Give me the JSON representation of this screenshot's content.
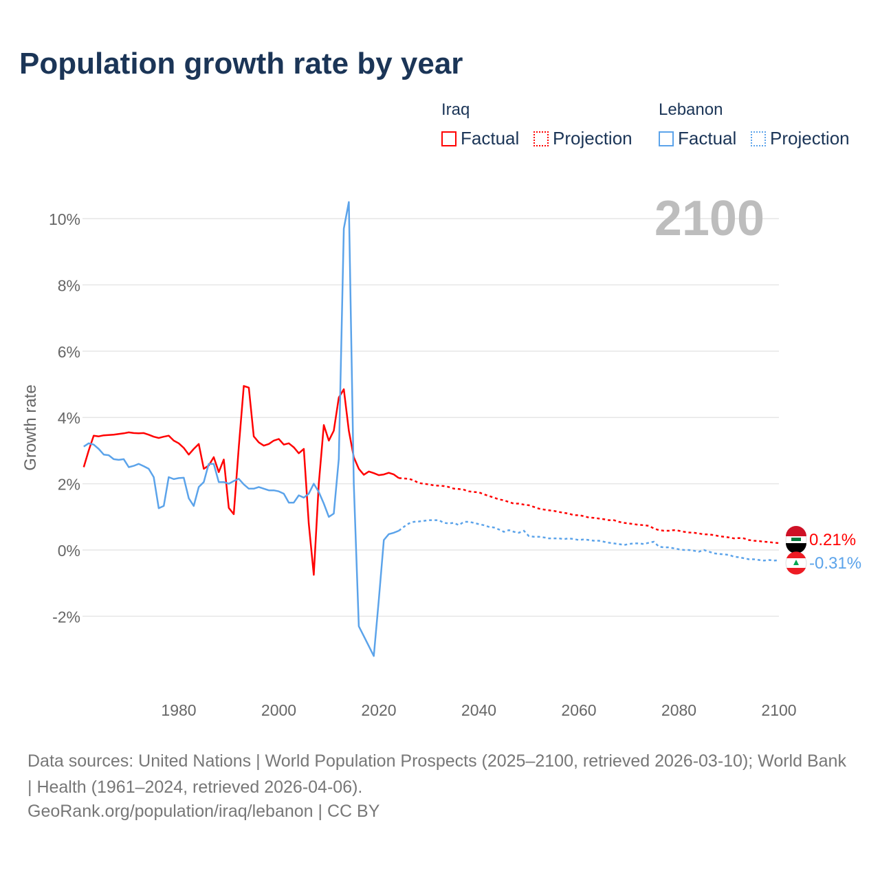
{
  "chart_data": {
    "type": "line",
    "title": "Population growth rate by year",
    "ylabel": "Growth rate",
    "xlabel": "",
    "year_label": "2100",
    "xlim": [
      1961,
      2100
    ],
    "ylim": [
      -4,
      10.5
    ],
    "xticks": [
      1980,
      2000,
      2020,
      2040,
      2060,
      2080,
      2100
    ],
    "yticks": [
      -2,
      0,
      2,
      4,
      6,
      8,
      10
    ],
    "ytick_labels": [
      "-2%",
      "0%",
      "2%",
      "4%",
      "6%",
      "8%",
      "10%"
    ],
    "grid": true,
    "legend": {
      "groups": [
        {
          "name": "Iraq",
          "factual": "Factual",
          "projection": "Projection"
        },
        {
          "name": "Lebanon",
          "factual": "Factual",
          "projection": "Projection"
        }
      ],
      "placement": "top-right"
    },
    "series": [
      {
        "name": "Iraq",
        "color": "#ff0000",
        "end_label": "0.21%",
        "factual_start": 1961,
        "factual": [
          2.5,
          3.0,
          3.45,
          3.43,
          3.46,
          3.47,
          3.48,
          3.5,
          3.52,
          3.55,
          3.53,
          3.52,
          3.53,
          3.48,
          3.42,
          3.38,
          3.42,
          3.45,
          3.3,
          3.22,
          3.08,
          2.88,
          3.05,
          3.2,
          2.45,
          2.55,
          2.8,
          2.35,
          2.73,
          1.27,
          1.08,
          3.1,
          4.95,
          4.9,
          3.43,
          3.25,
          3.15,
          3.2,
          3.3,
          3.35,
          3.18,
          3.22,
          3.1,
          2.92,
          3.05,
          0.8,
          -0.75,
          2.0,
          3.77,
          3.3,
          3.6,
          4.6,
          4.85,
          3.6,
          2.8,
          2.45,
          2.27,
          2.37,
          2.32,
          2.26,
          2.28,
          2.33,
          2.28,
          2.17
        ],
        "projection_start": 2024,
        "projection": [
          2.17,
          2.16,
          2.15,
          2.1,
          2.02,
          2.0,
          1.98,
          1.95,
          1.94,
          1.93,
          1.9,
          1.85,
          1.84,
          1.82,
          1.77,
          1.75,
          1.74,
          1.68,
          1.63,
          1.58,
          1.53,
          1.5,
          1.45,
          1.4,
          1.4,
          1.37,
          1.35,
          1.3,
          1.25,
          1.22,
          1.2,
          1.18,
          1.15,
          1.12,
          1.1,
          1.05,
          1.05,
          1.02,
          0.98,
          0.97,
          0.95,
          0.93,
          0.9,
          0.9,
          0.85,
          0.82,
          0.8,
          0.78,
          0.76,
          0.75,
          0.73,
          0.65,
          0.6,
          0.58,
          0.58,
          0.6,
          0.58,
          0.55,
          0.53,
          0.52,
          0.5,
          0.47,
          0.47,
          0.45,
          0.42,
          0.4,
          0.38,
          0.35,
          0.36,
          0.35,
          0.3,
          0.28,
          0.27,
          0.25,
          0.24,
          0.22,
          0.21
        ]
      },
      {
        "name": "Lebanon",
        "color": "#5ba3ea",
        "end_label": "-0.31%",
        "factual_start": 1961,
        "factual": [
          3.12,
          3.22,
          3.18,
          3.05,
          2.88,
          2.86,
          2.74,
          2.72,
          2.74,
          2.5,
          2.54,
          2.6,
          2.53,
          2.45,
          2.2,
          1.26,
          1.33,
          2.2,
          2.14,
          2.17,
          2.18,
          1.56,
          1.33,
          1.9,
          2.05,
          2.6,
          2.6,
          2.05,
          2.05,
          2.0,
          2.08,
          2.15,
          1.98,
          1.85,
          1.85,
          1.9,
          1.85,
          1.8,
          1.8,
          1.77,
          1.7,
          1.43,
          1.43,
          1.65,
          1.58,
          1.7,
          2.0,
          1.75,
          1.4,
          1.0,
          1.1,
          2.75,
          9.7,
          10.5,
          2.0,
          -2.3,
          -2.6,
          -2.9,
          -3.2,
          -1.5,
          0.3,
          0.48,
          0.52,
          0.58
        ],
        "projection_start": 2024,
        "projection": [
          0.58,
          0.7,
          0.8,
          0.85,
          0.86,
          0.88,
          0.9,
          0.9,
          0.9,
          0.82,
          0.8,
          0.82,
          0.75,
          0.85,
          0.85,
          0.82,
          0.78,
          0.75,
          0.7,
          0.68,
          0.62,
          0.55,
          0.6,
          0.55,
          0.52,
          0.58,
          0.42,
          0.4,
          0.4,
          0.38,
          0.35,
          0.35,
          0.35,
          0.33,
          0.35,
          0.33,
          0.3,
          0.32,
          0.3,
          0.28,
          0.28,
          0.25,
          0.22,
          0.2,
          0.18,
          0.15,
          0.18,
          0.2,
          0.2,
          0.18,
          0.22,
          0.25,
          0.1,
          0.08,
          0.08,
          0.05,
          0.02,
          0.0,
          0.0,
          -0.02,
          -0.05,
          0.0,
          -0.05,
          -0.1,
          -0.12,
          -0.13,
          -0.15,
          -0.2,
          -0.22,
          -0.25,
          -0.28,
          -0.28,
          -0.3,
          -0.32,
          -0.3,
          -0.32,
          -0.31
        ]
      }
    ]
  },
  "footer": {
    "sources": "Data sources: United Nations | World Population Prospects (2025–2100, retrieved 2026-03-10); World Bank | Health (1961–2024, retrieved 2026-04-06).",
    "credit": "GeoRank.org/population/iraq/lebanon | CC BY"
  }
}
